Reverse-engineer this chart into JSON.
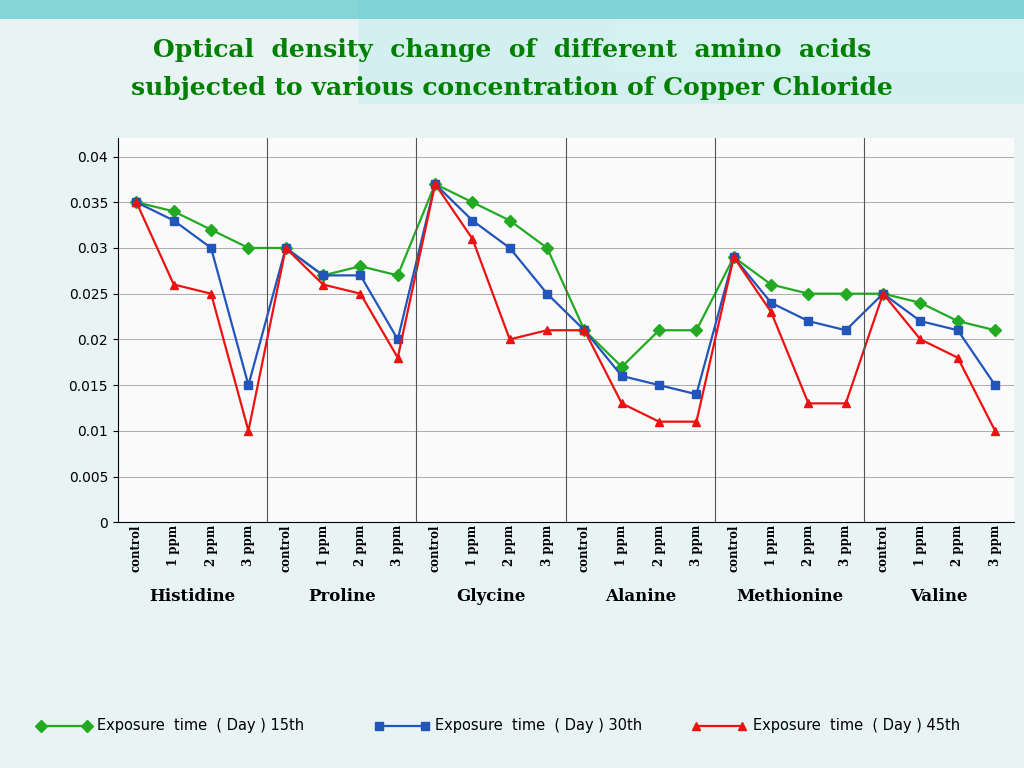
{
  "title_line1": "Optical  density  change  of  different  amino  acids",
  "title_line2": "subjected to various concentration of Copper Chloride",
  "title_color": "#008000",
  "groups": [
    "Histidine",
    "Proline",
    "Glycine",
    "Alanine",
    "Methionine",
    "Valine"
  ],
  "x_labels": [
    "control",
    "1 ppm",
    "2 ppm",
    "3 ppm"
  ],
  "ylim": [
    0,
    0.042
  ],
  "yticks": [
    0,
    0.005,
    0.01,
    0.015,
    0.02,
    0.025,
    0.03,
    0.035,
    0.04
  ],
  "day15": {
    "label": "Exposure  time  ( Day ) 15th",
    "color": "#22AA22",
    "marker": "D",
    "values": [
      [
        0.035,
        0.034,
        0.032,
        0.03
      ],
      [
        0.03,
        0.027,
        0.028,
        0.027
      ],
      [
        0.037,
        0.035,
        0.033,
        0.03
      ],
      [
        0.021,
        0.017,
        0.021,
        0.021
      ],
      [
        0.029,
        0.026,
        0.025,
        0.025
      ],
      [
        0.025,
        0.024,
        0.022,
        0.021
      ]
    ]
  },
  "day30": {
    "label": "Exposure  time  ( Day ) 30th",
    "color": "#2255BB",
    "marker": "s",
    "values": [
      [
        0.035,
        0.033,
        0.03,
        0.015
      ],
      [
        0.03,
        0.027,
        0.027,
        0.02
      ],
      [
        0.037,
        0.033,
        0.03,
        0.025
      ],
      [
        0.021,
        0.016,
        0.015,
        0.014
      ],
      [
        0.029,
        0.024,
        0.022,
        0.021
      ],
      [
        0.025,
        0.022,
        0.021,
        0.015
      ]
    ]
  },
  "day45": {
    "label": "Exposure  time  ( Day ) 45th",
    "color": "#EE1111",
    "marker": "^",
    "values": [
      [
        0.035,
        0.026,
        0.025,
        0.01
      ],
      [
        0.03,
        0.026,
        0.025,
        0.018
      ],
      [
        0.037,
        0.031,
        0.02,
        0.021
      ],
      [
        0.021,
        0.013,
        0.011,
        0.011
      ],
      [
        0.029,
        0.023,
        0.013,
        0.013
      ],
      [
        0.025,
        0.02,
        0.018,
        0.01
      ]
    ]
  },
  "header_bg": "#A8DEDE",
  "plot_bg": "#F5F5F5",
  "grid_color": "#999999",
  "sep_color": "#555555",
  "linewidth": 1.6,
  "markersize": 6
}
